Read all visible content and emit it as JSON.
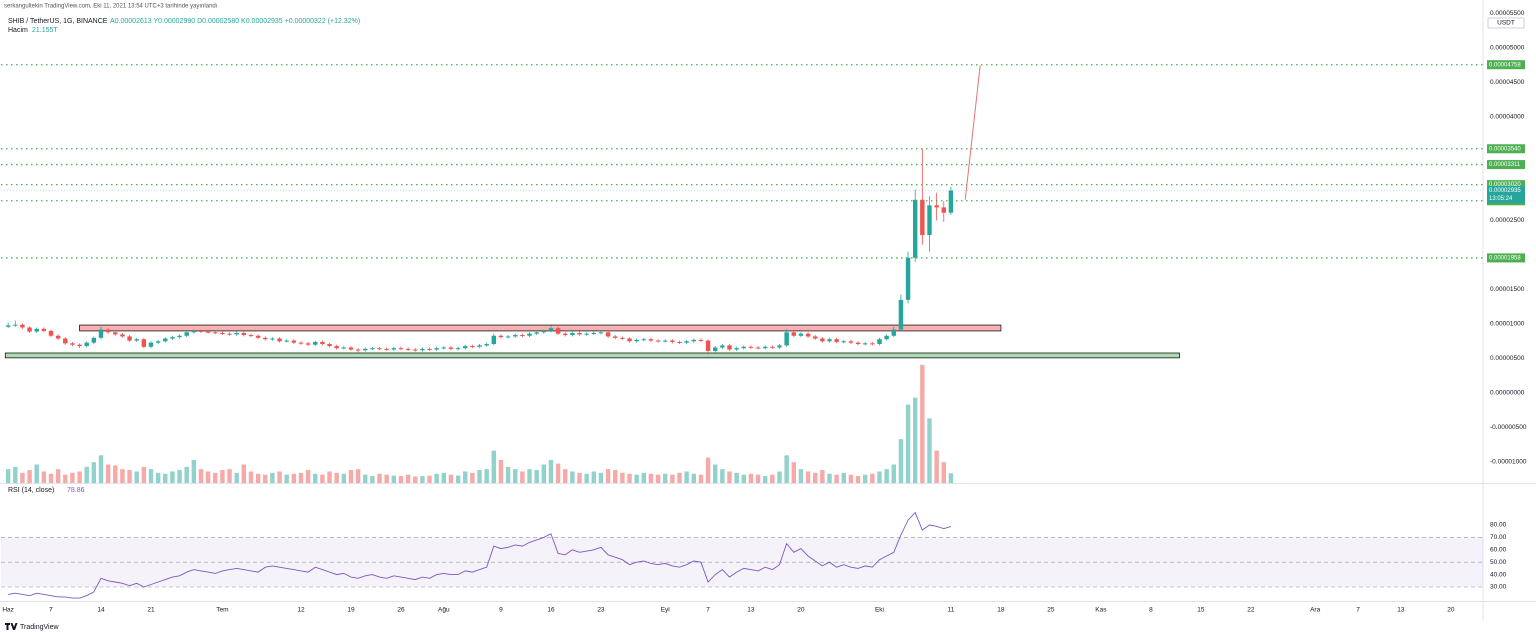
{
  "header": {
    "attribution": "serkangultekin TradingView.com, Eki 11, 2021 13:54 UTC+3 tarihinde yayınlandı",
    "symbol": "SHIB / TetherUS, 1G, BINANCE",
    "ohlc": "A0.00002613 Y0.00002990 D0.00002580 K0.00002935 +0.00000322 (+12.32%)",
    "volume_title": "Hacim",
    "volume_value": "21.155T",
    "rsi_title": "RSI (14, close)",
    "rsi_value": "78.86",
    "currency": "USDT",
    "footer": "TradingView"
  },
  "chart_data": [
    {
      "type": "candlestick",
      "x": [
        0,
        1,
        2,
        3,
        4,
        5,
        6,
        7,
        8,
        9,
        10,
        11,
        12,
        13,
        14,
        15,
        16,
        17,
        18,
        19,
        20,
        21,
        22,
        23,
        24,
        25,
        26,
        27,
        28,
        29,
        30,
        31,
        32,
        33,
        34,
        35,
        36,
        37,
        38,
        39,
        40,
        41,
        42,
        43,
        44,
        45,
        46,
        47,
        48,
        49,
        50,
        51,
        52,
        53,
        54,
        55,
        56,
        57,
        58,
        59,
        60,
        61,
        62,
        63,
        64,
        65,
        66,
        67,
        68,
        69,
        70,
        71,
        72,
        73,
        74,
        75,
        76,
        77,
        78,
        79,
        80,
        81,
        82,
        83,
        84,
        85,
        86,
        87,
        88,
        89,
        90,
        91,
        92,
        93,
        94,
        95,
        96,
        97,
        98,
        99,
        100,
        101,
        102,
        103,
        104,
        105,
        106,
        107,
        108,
        109,
        110,
        111,
        112,
        113,
        114,
        115,
        116,
        117,
        118,
        119,
        120,
        121,
        122,
        123,
        124,
        125,
        126,
        127,
        128,
        129,
        130,
        131,
        132
      ],
      "open": [
        9.6e-06,
        9.8e-06,
        9.9e-06,
        9.5e-06,
        8.9e-06,
        9.3e-06,
        9e-06,
        8.3e-06,
        7.9e-06,
        7.2e-06,
        7e-06,
        6.8e-06,
        7.3e-06,
        8e-06,
        9.2e-06,
        8.8e-06,
        8.5e-06,
        8.2e-06,
        7.6e-06,
        7.8e-06,
        6.7e-06,
        7.3e-06,
        7.5e-06,
        7.9e-06,
        8.1e-06,
        8.3e-06,
        8.8e-06,
        9e-06,
        8.9e-06,
        8.8e-06,
        8.7e-06,
        8.6e-06,
        8.5e-06,
        8.7e-06,
        8.4e-06,
        8.3e-06,
        8e-06,
        7.8e-06,
        7.9e-06,
        7.5e-06,
        7.6e-06,
        7.3e-06,
        7.2e-06,
        7e-06,
        7.4e-06,
        7.1e-06,
        6.8e-06,
        6.5e-06,
        6.6e-06,
        6.3e-06,
        6.2e-06,
        6.4e-06,
        6.5e-06,
        6.4e-06,
        6.3e-06,
        6.5e-06,
        6.4e-06,
        6.3e-06,
        6.2e-06,
        6.4e-06,
        6.3e-06,
        6.5e-06,
        6.6e-06,
        6.4e-06,
        6.5e-06,
        6.8e-06,
        6.7e-06,
        6.9e-06,
        7.1e-06,
        8.3e-06,
        8.1e-06,
        8.2e-06,
        8.4e-06,
        8.3e-06,
        8.6e-06,
        8.8e-06,
        9e-06,
        9.4e-06,
        8.6e-06,
        8.4e-06,
        8.7e-06,
        8.5e-06,
        8.6e-06,
        8.7e-06,
        8.8e-06,
        8.2e-06,
        8e-06,
        7.9e-06,
        7.5e-06,
        7.7e-06,
        7.8e-06,
        7.6e-06,
        7.5e-06,
        7.6e-06,
        7.4e-06,
        7.3e-06,
        7.5e-06,
        7.7e-06,
        7.6e-06,
        6.1e-06,
        6.6e-06,
        6.9e-06,
        6.3e-06,
        6.5e-06,
        6.7e-06,
        6.6e-06,
        6.5e-06,
        6.7e-06,
        6.6e-06,
        6.9e-06,
        8.8e-06,
        8.3e-06,
        8.6e-06,
        8.2e-06,
        7.9e-06,
        7.5e-06,
        7.8e-06,
        7.4e-06,
        7.5e-06,
        7.3e-06,
        7.1e-06,
        7.2e-06,
        7.1e-06,
        7.8e-06,
        8.3e-06,
        9.2e-06,
        1.35e-05,
        1.96e-05,
        2.8e-05,
        2.29e-05,
        2.72e-05,
        2.69e-05,
        2.613e-05
      ],
      "high": [
        1.02e-05,
        1.05e-05,
        1.01e-05,
        9.7e-06,
        9.5e-06,
        9.5e-06,
        9.2e-06,
        8.5e-06,
        8.1e-06,
        7.4e-06,
        7.2e-06,
        7.5e-06,
        8.2e-06,
        9.6e-06,
        9.4e-06,
        9e-06,
        8.7e-06,
        8.4e-06,
        8e-06,
        8e-06,
        7.5e-06,
        7.7e-06,
        8.1e-06,
        8.3e-06,
        8.5e-06,
        9e-06,
        9.2e-06,
        9.2e-06,
        9.1e-06,
        9e-06,
        8.9e-06,
        8.8e-06,
        8.9e-06,
        8.9e-06,
        8.6e-06,
        8.5e-06,
        8.2e-06,
        8.1e-06,
        8.1e-06,
        7.8e-06,
        7.8e-06,
        7.5e-06,
        7.4e-06,
        7.6e-06,
        7.6e-06,
        7.3e-06,
        7e-06,
        6.8e-06,
        6.8e-06,
        6.5e-06,
        6.6e-06,
        6.7e-06,
        6.7e-06,
        6.6e-06,
        6.7e-06,
        6.7e-06,
        6.6e-06,
        6.5e-06,
        6.6e-06,
        6.6e-06,
        6.7e-06,
        6.8e-06,
        6.8e-06,
        6.7e-06,
        7e-06,
        7e-06,
        7.1e-06,
        7.3e-06,
        8.6e-06,
        8.5e-06,
        8.4e-06,
        8.6e-06,
        8.6e-06,
        8.8e-06,
        9e-06,
        9.2e-06,
        9.8e-06,
        9.6e-06,
        8.8e-06,
        8.9e-06,
        8.9e-06,
        8.8e-06,
        8.9e-06,
        9e-06,
        9e-06,
        8.4e-06,
        8.2e-06,
        8.1e-06,
        7.9e-06,
        8e-06,
        8e-06,
        7.8e-06,
        7.8e-06,
        7.8e-06,
        7.6e-06,
        7.7e-06,
        7.9e-06,
        7.9e-06,
        7.8e-06,
        6.8e-06,
        7.1e-06,
        7.1e-06,
        6.7e-06,
        6.9e-06,
        6.9e-06,
        6.8e-06,
        6.9e-06,
        6.9e-06,
        7.1e-06,
        9.2e-06,
        9e-06,
        8.8e-06,
        8.8e-06,
        8.4e-06,
        8.1e-06,
        8e-06,
        8e-06,
        7.7e-06,
        7.7e-06,
        7.5e-06,
        7.4e-06,
        7.4e-06,
        8e-06,
        8.5e-06,
        9.6e-06,
        1.43e-05,
        2.05e-05,
        2.95e-05,
        3.54e-05,
        2.85e-05,
        2.9e-05,
        2.78e-05,
        2.99e-05
      ],
      "low": [
        9.4e-06,
        9.6e-06,
        9.3e-06,
        8.7e-06,
        8.7e-06,
        8.8e-06,
        8.1e-06,
        7.7e-06,
        7e-06,
        6.8e-06,
        6.5e-06,
        6.6e-06,
        7.1e-06,
        7.8e-06,
        8.6e-06,
        8.3e-06,
        8e-06,
        7.4e-06,
        7.4e-06,
        6.5e-06,
        6.5e-06,
        7.1e-06,
        7.3e-06,
        7.7e-06,
        7.9e-06,
        8.1e-06,
        8.6e-06,
        8.7e-06,
        8.6e-06,
        8.5e-06,
        8.4e-06,
        8.3e-06,
        8.3e-06,
        8.2e-06,
        8.1e-06,
        7.8e-06,
        7.6e-06,
        7.6e-06,
        7.3e-06,
        7.3e-06,
        7.1e-06,
        7e-06,
        6.8e-06,
        6.8e-06,
        6.9e-06,
        6.6e-06,
        6.3e-06,
        6.3e-06,
        6.1e-06,
        5.9e-06,
        6e-06,
        6.2e-06,
        6.2e-06,
        6.1e-06,
        6.1e-06,
        6.2e-06,
        6.1e-06,
        6e-06,
        6e-06,
        6.1e-06,
        6.1e-06,
        6.3e-06,
        6.2e-06,
        6.2e-06,
        6.3e-06,
        6.5e-06,
        6.5e-06,
        6.7e-06,
        6.9e-06,
        7.9e-06,
        7.9e-06,
        8e-06,
        8.1e-06,
        8.1e-06,
        8.4e-06,
        8.6e-06,
        8.8e-06,
        8.4e-06,
        8.2e-06,
        8.2e-06,
        8.3e-06,
        8.3e-06,
        8.4e-06,
        8.5e-06,
        8e-06,
        7.8e-06,
        7.7e-06,
        7.3e-06,
        7.3e-06,
        7.5e-06,
        7.4e-06,
        7.3e-06,
        7.3e-06,
        7.2e-06,
        7.1e-06,
        7.1e-06,
        7.3e-06,
        7.4e-06,
        5.6e-06,
        5.9e-06,
        6.4e-06,
        6.1e-06,
        6.1e-06,
        6.3e-06,
        6.4e-06,
        6.3e-06,
        6.3e-06,
        6.4e-06,
        6.4e-06,
        6.7e-06,
        8.1e-06,
        8.1e-06,
        8e-06,
        7.7e-06,
        7.3e-06,
        7.3e-06,
        7.2e-06,
        7.2e-06,
        7.1e-06,
        6.9e-06,
        6.9e-06,
        6.9e-06,
        6.9e-06,
        7.6e-06,
        8.1e-06,
        9e-06,
        1.3e-05,
        1.9e-05,
        2.15e-05,
        2.05e-05,
        2.5e-05,
        2.48e-05,
        2.58e-05
      ],
      "close": [
        9.8e-06,
        9.9e-06,
        9.5e-06,
        8.9e-06,
        9.3e-06,
        9e-06,
        8.3e-06,
        7.9e-06,
        7.2e-06,
        7e-06,
        6.8e-06,
        7.3e-06,
        8e-06,
        9.2e-06,
        8.8e-06,
        8.5e-06,
        8.2e-06,
        7.6e-06,
        7.8e-06,
        6.7e-06,
        7.3e-06,
        7.5e-06,
        7.9e-06,
        8.1e-06,
        8.3e-06,
        8.8e-06,
        9e-06,
        8.9e-06,
        8.8e-06,
        8.7e-06,
        8.6e-06,
        8.5e-06,
        8.7e-06,
        8.4e-06,
        8.3e-06,
        8e-06,
        7.8e-06,
        7.9e-06,
        7.5e-06,
        7.6e-06,
        7.3e-06,
        7.2e-06,
        7e-06,
        7.4e-06,
        7.1e-06,
        6.8e-06,
        6.5e-06,
        6.6e-06,
        6.3e-06,
        6.2e-06,
        6.4e-06,
        6.5e-06,
        6.4e-06,
        6.3e-06,
        6.5e-06,
        6.4e-06,
        6.3e-06,
        6.2e-06,
        6.4e-06,
        6.3e-06,
        6.5e-06,
        6.6e-06,
        6.4e-06,
        6.5e-06,
        6.8e-06,
        6.7e-06,
        6.9e-06,
        7.1e-06,
        8.3e-06,
        8.1e-06,
        8.2e-06,
        8.4e-06,
        8.3e-06,
        8.6e-06,
        8.8e-06,
        9e-06,
        9.4e-06,
        8.6e-06,
        8.4e-06,
        8.7e-06,
        8.5e-06,
        8.6e-06,
        8.7e-06,
        8.8e-06,
        8.2e-06,
        8e-06,
        7.9e-06,
        7.5e-06,
        7.7e-06,
        7.8e-06,
        7.6e-06,
        7.5e-06,
        7.6e-06,
        7.4e-06,
        7.3e-06,
        7.5e-06,
        7.7e-06,
        7.6e-06,
        6.1e-06,
        6.6e-06,
        6.9e-06,
        6.3e-06,
        6.5e-06,
        6.7e-06,
        6.6e-06,
        6.5e-06,
        6.7e-06,
        6.6e-06,
        6.9e-06,
        8.8e-06,
        8.3e-06,
        8.6e-06,
        8.2e-06,
        7.9e-06,
        7.5e-06,
        7.8e-06,
        7.4e-06,
        7.5e-06,
        7.3e-06,
        7.1e-06,
        7.2e-06,
        7.1e-06,
        7.8e-06,
        8.3e-06,
        9.2e-06,
        1.35e-05,
        1.96e-05,
        2.8e-05,
        2.29e-05,
        2.72e-05,
        2.69e-05,
        2.613e-05,
        2.935e-05
      ],
      "volume": [
        30,
        35,
        22,
        28,
        40,
        25,
        20,
        30,
        18,
        22,
        25,
        35,
        45,
        60,
        40,
        38,
        30,
        28,
        25,
        35,
        30,
        22,
        20,
        25,
        28,
        35,
        50,
        30,
        25,
        22,
        28,
        30,
        22,
        40,
        25,
        20,
        18,
        22,
        25,
        18,
        20,
        22,
        28,
        20,
        18,
        25,
        22,
        20,
        28,
        30,
        18,
        15,
        20,
        18,
        16,
        15,
        18,
        14,
        15,
        16,
        20,
        22,
        18,
        16,
        25,
        22,
        28,
        30,
        70,
        50,
        35,
        30,
        25,
        30,
        28,
        40,
        50,
        42,
        30,
        25,
        22,
        20,
        25,
        22,
        30,
        28,
        22,
        20,
        18,
        22,
        20,
        18,
        20,
        18,
        22,
        25,
        20,
        18,
        55,
        40,
        30,
        25,
        22,
        18,
        20,
        18,
        15,
        18,
        25,
        60,
        45,
        30,
        25,
        22,
        28,
        20,
        18,
        22,
        18,
        15,
        18,
        20,
        25,
        30,
        40,
        95,
        170,
        185,
        256,
        140,
        70,
        45,
        21.155
      ],
      "volume_lim": [
        0,
        260
      ],
      "up_color": "#26a69a",
      "down_color": "#ef5350",
      "xlim": [
        -1,
        206.5
      ],
      "xticks": [
        {
          "value": 0,
          "label": "Haz"
        },
        {
          "value": 6,
          "label": "7"
        },
        {
          "value": 13,
          "label": "14"
        },
        {
          "value": 20,
          "label": "21"
        },
        {
          "value": 30,
          "label": "Tem"
        },
        {
          "value": 41,
          "label": "12"
        },
        {
          "value": 48,
          "label": "19"
        },
        {
          "value": 55,
          "label": "26"
        },
        {
          "value": 61,
          "label": "Ağu"
        },
        {
          "value": 69,
          "label": "9"
        },
        {
          "value": 76,
          "label": "16"
        },
        {
          "value": 83,
          "label": "23"
        },
        {
          "value": 92,
          "label": "Eyl"
        },
        {
          "value": 98,
          "label": "7"
        },
        {
          "value": 104,
          "label": "13"
        },
        {
          "value": 111,
          "label": "20"
        },
        {
          "value": 122,
          "label": "Eki"
        },
        {
          "value": 132,
          "label": "11"
        },
        {
          "value": 139,
          "label": "18"
        },
        {
          "value": 146,
          "label": "25"
        },
        {
          "value": 153,
          "label": "Kas"
        },
        {
          "value": 160,
          "label": "8"
        },
        {
          "value": 167,
          "label": "15"
        },
        {
          "value": 174,
          "label": "22"
        },
        {
          "value": 183,
          "label": "Ara"
        },
        {
          "value": 189,
          "label": "7"
        },
        {
          "value": 195,
          "label": "13"
        },
        {
          "value": 202,
          "label": "20"
        }
      ],
      "ylim": [
        -1.304e-05,
        5.551e-05
      ],
      "yticks": [
        {
          "value": 5.5e-05,
          "label": "0.00005500"
        },
        {
          "value": 5e-05,
          "label": "0.00005000"
        },
        {
          "value": 4.5e-05,
          "label": "0.00004500"
        },
        {
          "value": 4e-05,
          "label": "0.00004000"
        },
        {
          "value": 2.5e-05,
          "label": "0.00002500"
        },
        {
          "value": 1.5e-05,
          "label": "0.00001500"
        },
        {
          "value": 1e-05,
          "label": "0.00001000"
        },
        {
          "value": 5e-06,
          "label": "0.00000500"
        },
        {
          "value": 0,
          "label": "0.00000000"
        },
        {
          "value": -5e-06,
          "label": "-0.00000500"
        },
        {
          "value": -1e-05,
          "label": "-0.00001000"
        }
      ],
      "levels": [
        {
          "value": 4.758e-05,
          "label": "0.00004758"
        },
        {
          "value": 3.54e-05,
          "label": "0.00003540"
        },
        {
          "value": 3.311e-05,
          "label": "0.00003311"
        },
        {
          "value": 3.02e-05,
          "label": "0.00003020"
        },
        {
          "value": 2.786e-05,
          "label": "0.00002786"
        },
        {
          "value": 1.958e-05,
          "label": "0.00001958"
        }
      ],
      "level_color": "#4caf50",
      "last_price": {
        "value": 2.935e-05,
        "label": "0.00002935",
        "countdown": "13:05:24"
      },
      "zones": [
        {
          "from": 10,
          "to": 139,
          "low": 9e-06,
          "high": 9.85e-06,
          "color": "#ef5350"
        },
        {
          "from": -0.4,
          "to": 164,
          "low": 5.1e-06,
          "high": 5.8e-06,
          "color": "#4caf50"
        }
      ],
      "trend_line": {
        "x": [
          134,
          136.1
        ],
        "values": [
          2.8e-05,
          4.75e-05
        ],
        "color": "#e57373"
      }
    },
    {
      "type": "line",
      "values": [
        24,
        25,
        24,
        23,
        25,
        24,
        23,
        22,
        22,
        21,
        21,
        23,
        26,
        37,
        35,
        34,
        33,
        31,
        33,
        30,
        32,
        34,
        36,
        38,
        39,
        42,
        44,
        43,
        42,
        41,
        43,
        44,
        45,
        44,
        43,
        42,
        46,
        47,
        46,
        45,
        44,
        43,
        42,
        46,
        44,
        42,
        40,
        41,
        38,
        37,
        39,
        40,
        38,
        37,
        39,
        38,
        37,
        36,
        38,
        37,
        40,
        41,
        40,
        40,
        43,
        42,
        44,
        46,
        63,
        61,
        62,
        64,
        63,
        66,
        68,
        70,
        73,
        57,
        56,
        60,
        58,
        59,
        60,
        62,
        56,
        54,
        52,
        48,
        50,
        51,
        49,
        48,
        49,
        47,
        46,
        48,
        51,
        50,
        34,
        40,
        44,
        38,
        42,
        45,
        44,
        43,
        46,
        44,
        48,
        65,
        58,
        61,
        55,
        51,
        47,
        50,
        46,
        48,
        46,
        45,
        47,
        46,
        52,
        55,
        58,
        72,
        84,
        90,
        76,
        80,
        79,
        77,
        78.86
      ],
      "color": "#7e57c2",
      "ylim": [
        19.5,
        112.3
      ],
      "yticks": [
        {
          "value": 30,
          "label": "30.00"
        },
        {
          "value": 40,
          "label": "40.00"
        },
        {
          "value": 50,
          "label": "50.00"
        },
        {
          "value": 60,
          "label": "60.00"
        },
        {
          "value": 70,
          "label": "70.00"
        },
        {
          "value": 80,
          "label": "80.00"
        }
      ],
      "levels": [
        70,
        50,
        30
      ]
    }
  ]
}
